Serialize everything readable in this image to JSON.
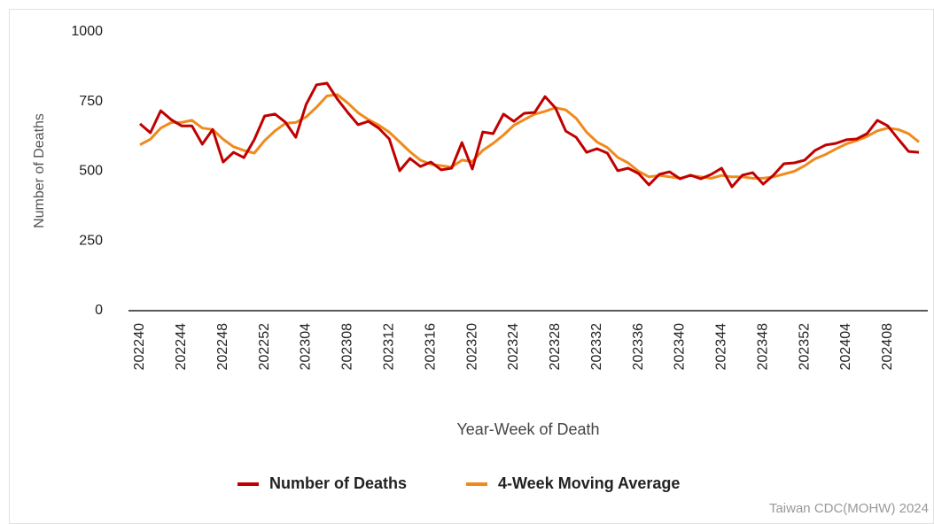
{
  "chart_data": {
    "type": "line",
    "y_label": "Number of Deaths",
    "x_label": "Year-Week of Death",
    "source": "Taiwan CDC(MOHW) 2024",
    "categories": [
      "202240",
      null,
      null,
      null,
      "202244",
      null,
      null,
      null,
      "202248",
      null,
      null,
      null,
      "202252",
      null,
      null,
      null,
      "202304",
      null,
      null,
      null,
      "202308",
      null,
      null,
      null,
      "202312",
      null,
      null,
      null,
      "202316",
      null,
      null,
      null,
      "202320",
      null,
      null,
      null,
      "202324",
      null,
      null,
      null,
      "202328",
      null,
      null,
      null,
      "202332",
      null,
      null,
      null,
      "202336",
      null,
      null,
      null,
      "202340",
      null,
      null,
      null,
      "202344",
      null,
      null,
      null,
      "202348",
      null,
      null,
      null,
      "202352",
      null,
      null,
      null,
      "202404",
      null,
      null,
      null,
      "202408",
      null,
      null,
      null
    ],
    "series": [
      {
        "name": "Number of Deaths",
        "color": "#c00000",
        "values": [
          670,
          638,
          717,
          685,
          663,
          663,
          597,
          650,
          533,
          568,
          549,
          613,
          698,
          705,
          676,
          622,
          740,
          810,
          816,
          759,
          711,
          667,
          679,
          654,
          616,
          502,
          546,
          517,
          533,
          505,
          511,
          603,
          508,
          641,
          635,
          705,
          679,
          708,
          711,
          768,
          727,
          644,
          622,
          568,
          581,
          565,
          502,
          511,
          492,
          451,
          489,
          498,
          473,
          486,
          473,
          489,
          511,
          444,
          486,
          495,
          454,
          486,
          527,
          530,
          540,
          575,
          594,
          600,
          613,
          616,
          635,
          683,
          663,
          616,
          571,
          568
        ]
      },
      {
        "name": "4-Week Moving Average",
        "color": "#f08a1c",
        "values": [
          595,
          615,
          655,
          675,
          675,
          683,
          655,
          650,
          615,
          588,
          575,
          565,
          610,
          645,
          672,
          675,
          695,
          730,
          770,
          775,
          745,
          710,
          685,
          665,
          640,
          605,
          570,
          540,
          525,
          520,
          515,
          540,
          535,
          575,
          600,
          630,
          665,
          685,
          705,
          715,
          728,
          720,
          690,
          640,
          605,
          585,
          550,
          530,
          500,
          480,
          485,
          480,
          475,
          485,
          480,
          475,
          485,
          480,
          480,
          475,
          475,
          480,
          490,
          500,
          520,
          545,
          560,
          580,
          598,
          610,
          625,
          645,
          655,
          650,
          635,
          605
        ]
      }
    ],
    "ylim": [
      0,
      1000
    ],
    "yticks": [
      0,
      250,
      500,
      750,
      1000
    ],
    "grid": false
  }
}
